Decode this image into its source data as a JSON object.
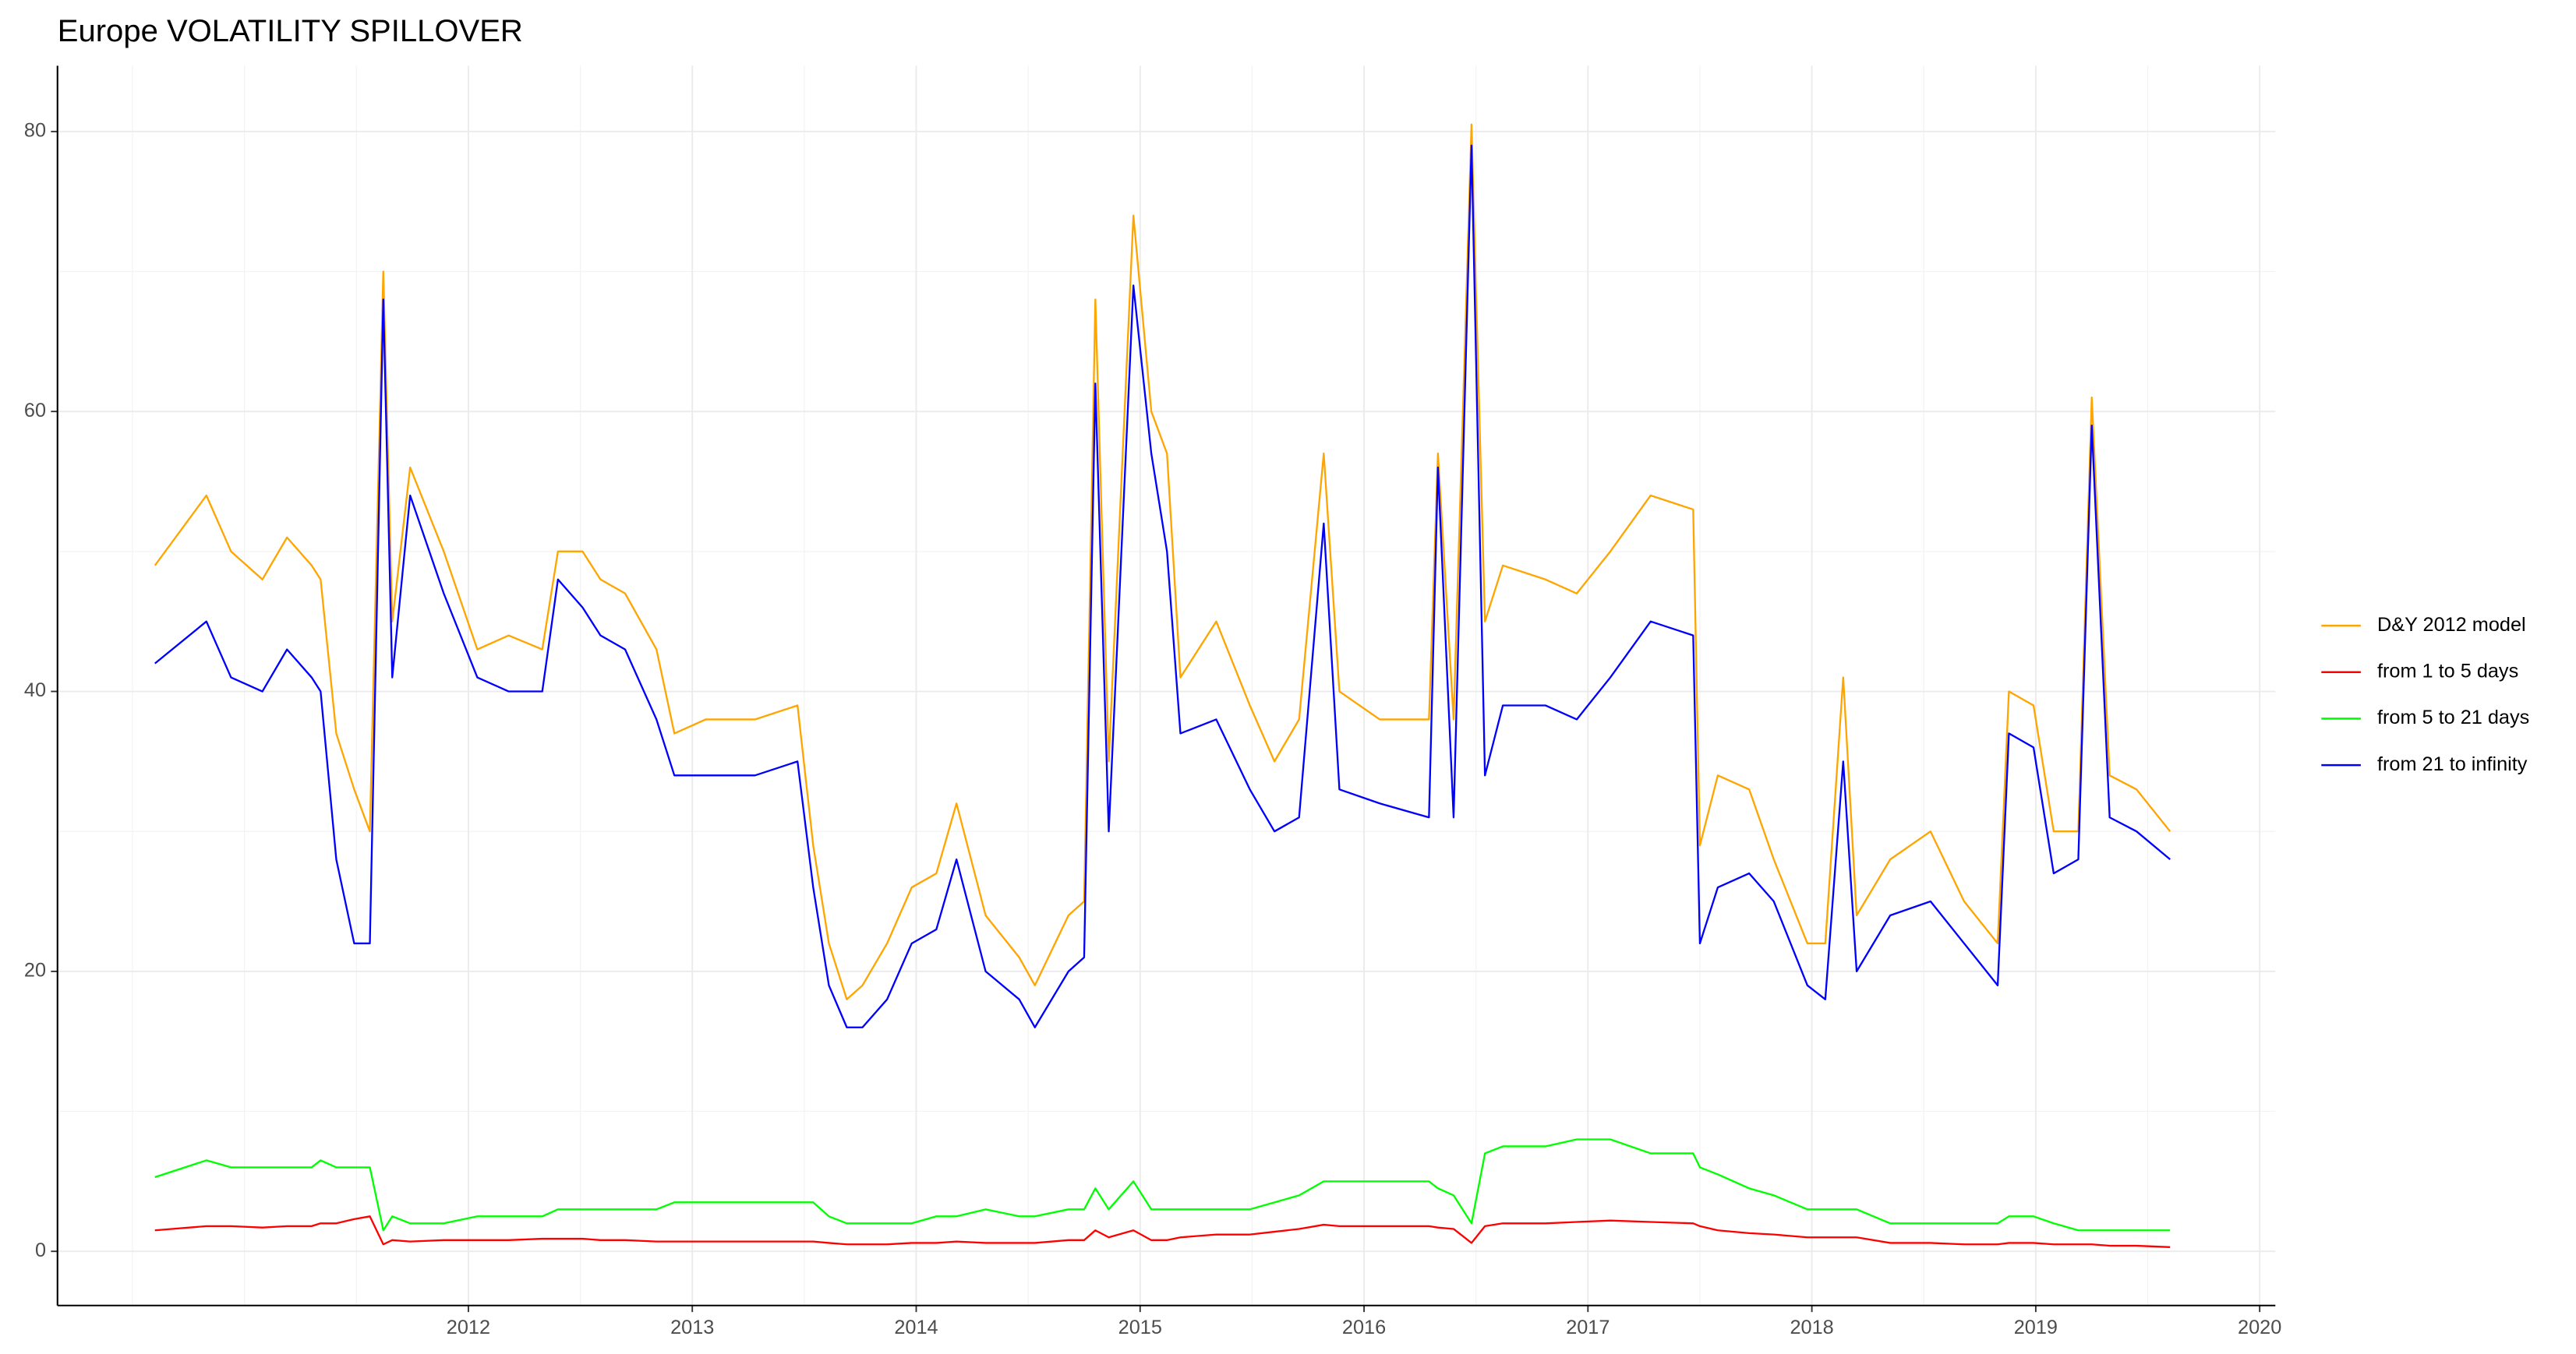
{
  "chart_data": {
    "type": "line",
    "title": "Europe VOLATILITY SPILLOVER",
    "x": [
      2010.6,
      2010.83,
      2010.94,
      2011.08,
      2011.19,
      2011.3,
      2011.34,
      2011.41,
      2011.49,
      2011.56,
      2011.62,
      2011.66,
      2011.74,
      2011.89,
      2012.04,
      2012.18,
      2012.33,
      2012.4,
      2012.51,
      2012.59,
      2012.7,
      2012.84,
      2012.92,
      2013.06,
      2013.28,
      2013.47,
      2013.54,
      2013.61,
      2013.69,
      2013.76,
      2013.87,
      2013.98,
      2014.09,
      2014.18,
      2014.31,
      2014.46,
      2014.53,
      2014.68,
      2014.75,
      2014.8,
      2014.86,
      2014.97,
      2015.05,
      2015.12,
      2015.18,
      2015.34,
      2015.49,
      2015.6,
      2015.71,
      2015.82,
      2015.89,
      2016.07,
      2016.29,
      2016.33,
      2016.4,
      2016.48,
      2016.54,
      2016.62,
      2016.81,
      2016.95,
      2017.1,
      2017.28,
      2017.47,
      2017.5,
      2017.58,
      2017.72,
      2017.83,
      2017.98,
      2018.06,
      2018.14,
      2018.2,
      2018.35,
      2018.53,
      2018.68,
      2018.83,
      2018.88,
      2018.99,
      2019.08,
      2019.19,
      2019.25,
      2019.33,
      2019.45,
      2019.6
    ],
    "series": [
      {
        "name": "D&Y 2012 model",
        "color": "#ffa500",
        "values": [
          49,
          54,
          50,
          48,
          51,
          49,
          48,
          37,
          33,
          30,
          70,
          45,
          56,
          50,
          43,
          44,
          43,
          50,
          50,
          48,
          47,
          43,
          37,
          38,
          38,
          39,
          29,
          22,
          18,
          19,
          22,
          26,
          27,
          32,
          24,
          21,
          19,
          24,
          25,
          68,
          35,
          74,
          60,
          57,
          41,
          45,
          39,
          35,
          38,
          57,
          40,
          38,
          38,
          57,
          38,
          80.5,
          45,
          49,
          48,
          47,
          50,
          54,
          53,
          29,
          34,
          33,
          28,
          22,
          22,
          41,
          24,
          28,
          30,
          25,
          22,
          40,
          39,
          30,
          30,
          61,
          34,
          33,
          30
        ]
      },
      {
        "name": "from 1 to 5 days",
        "color": "#ff0000",
        "values": [
          1.5,
          1.8,
          1.8,
          1.7,
          1.8,
          1.8,
          2,
          2,
          2.3,
          2.5,
          0.5,
          0.8,
          0.7,
          0.8,
          0.8,
          0.8,
          0.9,
          0.9,
          0.9,
          0.8,
          0.8,
          0.7,
          0.7,
          0.7,
          0.7,
          0.7,
          0.7,
          0.6,
          0.5,
          0.5,
          0.5,
          0.6,
          0.6,
          0.7,
          0.6,
          0.6,
          0.6,
          0.8,
          0.8,
          1.5,
          1,
          1.5,
          0.8,
          0.8,
          1,
          1.2,
          1.2,
          1.4,
          1.6,
          1.9,
          1.8,
          1.8,
          1.8,
          1.7,
          1.6,
          0.6,
          1.8,
          2,
          2,
          2.1,
          2.2,
          2.1,
          2,
          1.8,
          1.5,
          1.3,
          1.2,
          1,
          1,
          1,
          1,
          0.6,
          0.6,
          0.5,
          0.5,
          0.6,
          0.6,
          0.5,
          0.5,
          0.5,
          0.4,
          0.4,
          0.3
        ]
      },
      {
        "name": "from 5 to 21 days",
        "color": "#00ff00",
        "values": [
          5.3,
          6.5,
          6,
          6,
          6,
          6,
          6.5,
          6,
          6,
          6,
          1.5,
          2.5,
          2,
          2,
          2.5,
          2.5,
          2.5,
          3,
          3,
          3,
          3,
          3,
          3.5,
          3.5,
          3.5,
          3.5,
          3.5,
          2.5,
          2,
          2,
          2,
          2,
          2.5,
          2.5,
          3,
          2.5,
          2.5,
          3,
          3,
          4.5,
          3,
          5,
          3,
          3,
          3,
          3,
          3,
          3.5,
          4,
          5,
          5,
          5,
          5,
          4.5,
          4,
          2,
          7,
          7.5,
          7.5,
          8,
          8,
          7,
          7,
          6,
          5.5,
          4.5,
          4,
          3,
          3,
          3,
          3,
          2,
          2,
          2,
          2,
          2.5,
          2.5,
          2,
          1.5,
          1.5,
          1.5,
          1.5,
          1.5
        ]
      },
      {
        "name": "from 21 to infinity",
        "color": "#0000ff",
        "values": [
          42,
          45,
          41,
          40,
          43,
          41,
          40,
          28,
          22,
          22,
          68,
          41,
          54,
          47,
          41,
          40,
          40,
          48,
          46,
          44,
          43,
          38,
          34,
          34,
          34,
          35,
          26,
          19,
          16,
          16,
          18,
          22,
          23,
          28,
          20,
          18,
          16,
          20,
          21,
          62,
          30,
          69,
          57,
          50,
          37,
          38,
          33,
          30,
          31,
          52,
          33,
          32,
          31,
          56,
          31,
          79,
          34,
          39,
          39,
          38,
          41,
          45,
          44,
          22,
          26,
          27,
          25,
          19,
          18,
          35,
          20,
          24,
          25,
          22,
          19,
          37,
          36,
          27,
          28,
          59,
          31,
          30,
          28
        ]
      }
    ],
    "xlim": [
      2010.165,
      2020.07
    ],
    "xticks": [
      2012,
      2013,
      2014,
      2015,
      2016,
      2017,
      2018,
      2019,
      2020
    ],
    "ylim": [
      -3.87,
      84.7
    ],
    "yticks": [
      0,
      20,
      40,
      60,
      80
    ],
    "grid": true,
    "legend": "right"
  }
}
